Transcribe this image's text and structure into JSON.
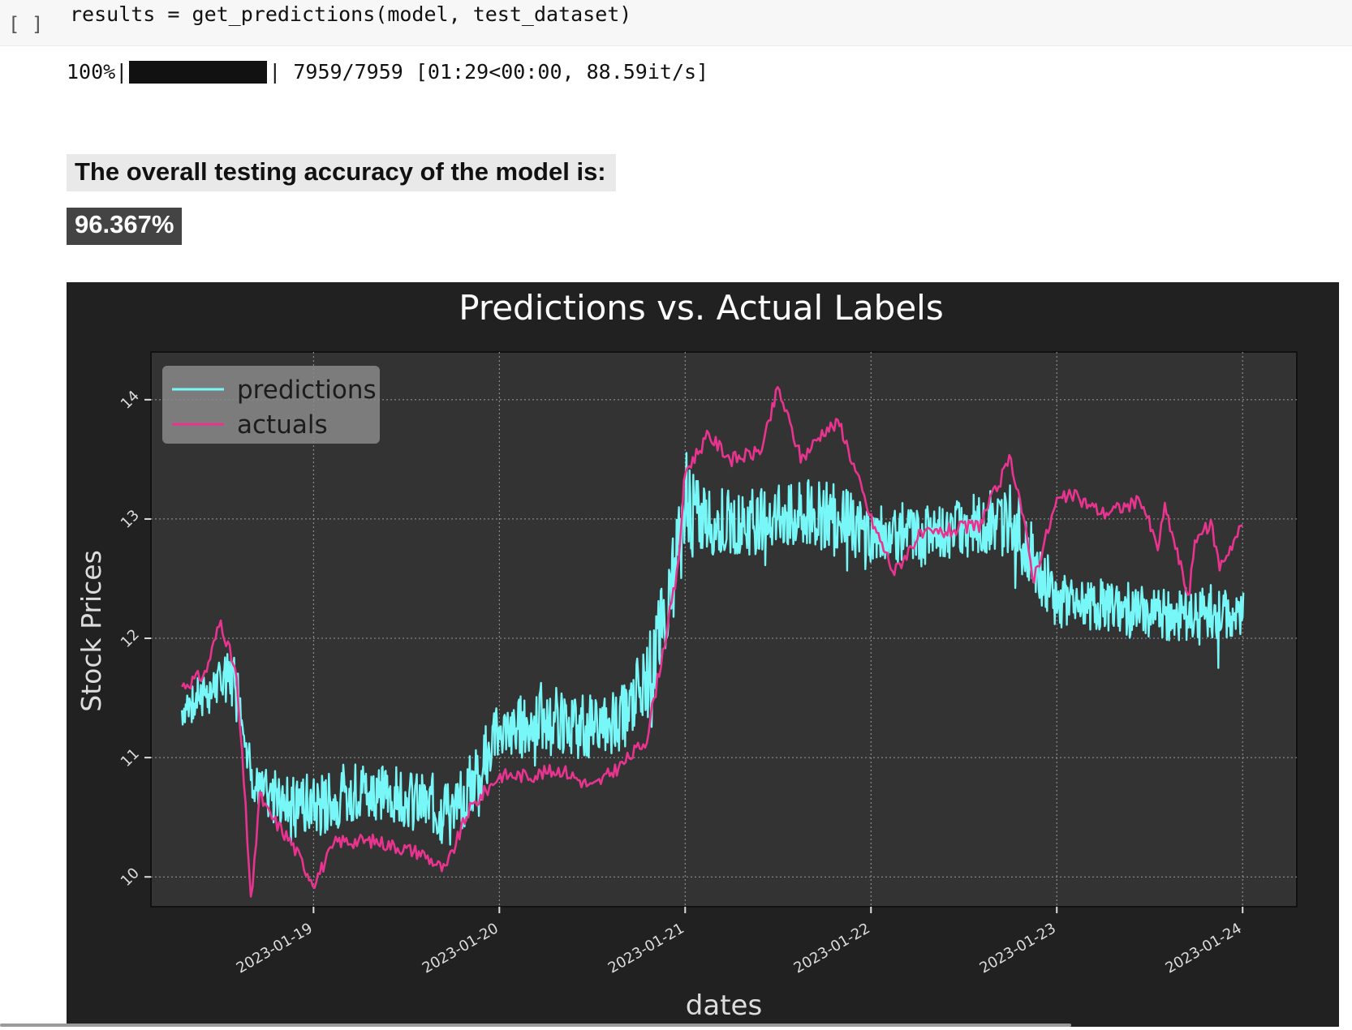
{
  "cell": {
    "exec_count": "[ ]",
    "code": "results = get_predictions(model, test_dataset)"
  },
  "progress": {
    "percent_text": "100%|",
    "fraction": 1.0,
    "stats_text": "| 7959/7959 [01:29<00:00, 88.59it/s]"
  },
  "accuracy": {
    "label": "The overall testing accuracy of the model is:",
    "value": "96.367%"
  },
  "colors": {
    "predictions": "#77f7f7",
    "actuals": "#e8348f",
    "figure_bg": "#212121",
    "axes_bg": "#333333"
  },
  "chart_data": {
    "type": "line",
    "title": "Predictions vs. Actual Labels",
    "xlabel": "dates",
    "ylabel": "Stock Prices",
    "xlim": [
      "2023-01-18 03:00",
      "2023-01-24 07:00"
    ],
    "ylim": [
      9.75,
      14.4
    ],
    "x_ticks": [
      "2023-01-19",
      "2023-01-20",
      "2023-01-21",
      "2023-01-22",
      "2023-01-23",
      "2023-01-24"
    ],
    "y_ticks": [
      "10",
      "11",
      "12",
      "13",
      "14"
    ],
    "grid": true,
    "legend": "top-left",
    "series": [
      {
        "name": "predictions",
        "color": "#77f7f7",
        "style": "noisy band",
        "x": [
          "2023-01-18 07:00",
          "2023-01-18 12:00",
          "2023-01-18 14:00",
          "2023-01-18 16:00",
          "2023-01-18 18:00",
          "2023-01-19 00:00",
          "2023-01-19 06:00",
          "2023-01-19 12:00",
          "2023-01-19 18:00",
          "2023-01-20 00:00",
          "2023-01-20 06:00",
          "2023-01-20 12:00",
          "2023-01-20 16:00",
          "2023-01-20 20:00",
          "2023-01-21 00:00",
          "2023-01-21 06:00",
          "2023-01-21 12:00",
          "2023-01-21 18:00",
          "2023-01-22 00:00",
          "2023-01-22 06:00",
          "2023-01-22 12:00",
          "2023-01-22 18:00",
          "2023-01-23 00:00",
          "2023-01-23 06:00",
          "2023-01-23 12:00",
          "2023-01-23 18:00",
          "2023-01-24 00:00"
        ],
        "low": [
          11.2,
          11.35,
          11.45,
          10.6,
          10.4,
          10.2,
          10.4,
          10.35,
          10.1,
          10.9,
          10.95,
          10.9,
          11.0,
          11.3,
          12.6,
          12.6,
          12.65,
          12.6,
          12.55,
          12.55,
          12.6,
          12.6,
          12.0,
          12.0,
          11.9,
          11.85,
          11.9
        ],
        "high": [
          11.6,
          11.9,
          11.95,
          11.0,
          10.95,
          10.95,
          11.05,
          11.0,
          10.9,
          11.55,
          11.65,
          11.6,
          11.7,
          12.3,
          13.5,
          13.3,
          13.4,
          13.45,
          13.2,
          13.2,
          13.25,
          13.4,
          12.6,
          12.55,
          12.5,
          12.5,
          12.45
        ]
      },
      {
        "name": "actuals",
        "color": "#e8348f",
        "x": [
          "2023-01-18 07:00",
          "2023-01-18 10:00",
          "2023-01-18 12:00",
          "2023-01-18 14:00",
          "2023-01-18 15:00",
          "2023-01-18 16:00",
          "2023-01-18 17:00",
          "2023-01-18 18:00",
          "2023-01-18 21:00",
          "2023-01-19 00:00",
          "2023-01-19 03:00",
          "2023-01-19 08:00",
          "2023-01-19 14:00",
          "2023-01-19 17:00",
          "2023-01-19 20:00",
          "2023-01-20 00:00",
          "2023-01-20 04:00",
          "2023-01-20 08:00",
          "2023-01-20 12:00",
          "2023-01-20 16:00",
          "2023-01-20 19:00",
          "2023-01-20 21:00",
          "2023-01-20 23:00",
          "2023-01-21 00:00",
          "2023-01-21 03:00",
          "2023-01-21 06:00",
          "2023-01-21 09:00",
          "2023-01-21 10:00",
          "2023-01-21 12:00",
          "2023-01-21 15:00",
          "2023-01-21 18:00",
          "2023-01-21 20:00",
          "2023-01-22 00:00",
          "2023-01-22 03:00",
          "2023-01-22 06:00",
          "2023-01-22 10:00",
          "2023-01-22 14:00",
          "2023-01-22 18:00",
          "2023-01-22 19:00",
          "2023-01-22 21:00",
          "2023-01-23 00:00",
          "2023-01-23 02:00",
          "2023-01-23 06:00",
          "2023-01-23 11:00",
          "2023-01-23 13:00",
          "2023-01-23 14:00",
          "2023-01-23 17:00",
          "2023-01-23 18:00",
          "2023-01-23 20:00",
          "2023-01-23 21:00",
          "2023-01-24 00:00"
        ],
        "y": [
          11.6,
          11.7,
          12.15,
          11.7,
          10.8,
          9.75,
          10.7,
          10.55,
          10.3,
          9.95,
          10.3,
          10.3,
          10.2,
          10.05,
          10.55,
          10.85,
          10.85,
          10.9,
          10.75,
          10.95,
          11.15,
          11.85,
          12.55,
          13.4,
          13.7,
          13.5,
          13.55,
          13.6,
          14.1,
          13.5,
          13.75,
          13.8,
          13.0,
          12.55,
          12.85,
          12.9,
          12.95,
          13.5,
          13.25,
          12.5,
          13.15,
          13.2,
          13.05,
          13.15,
          12.75,
          13.1,
          12.35,
          12.85,
          12.95,
          12.6,
          12.95
        ]
      }
    ]
  }
}
